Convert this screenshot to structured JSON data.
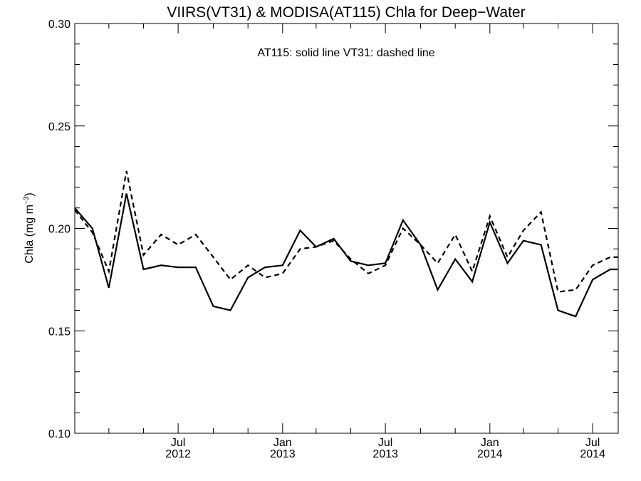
{
  "chart_data": {
    "type": "line",
    "title": "VIIRS(VT31) & MODISA(AT115)  Chla for Deep−Water",
    "annotation": "AT115: solid line   VT31: dashed line",
    "xlabel": "",
    "ylabel": {
      "text": "Chla (mg m",
      "superscript": "−3",
      "close": ")"
    },
    "ylim": [
      0.1,
      0.3
    ],
    "yticks": [
      "0.10",
      "0.15",
      "0.20",
      "0.25",
      "0.30"
    ],
    "yticks_values": [
      0.1,
      0.15,
      0.2,
      0.25,
      0.3
    ],
    "y_minor_step": 0.01,
    "x_axis_type": "date",
    "xlim": [
      "2012-01-01",
      "2014-08-15"
    ],
    "x_major_ticks": [
      {
        "date": "2012-07-01",
        "label_top": "Jul",
        "label_bottom": "2012"
      },
      {
        "date": "2013-01-01",
        "label_top": "Jan",
        "label_bottom": "2013"
      },
      {
        "date": "2013-07-01",
        "label_top": "Jul",
        "label_bottom": "2013"
      },
      {
        "date": "2014-01-01",
        "label_top": "Jan",
        "label_bottom": "2014"
      },
      {
        "date": "2014-07-01",
        "label_top": "Jul",
        "label_bottom": "2014"
      }
    ],
    "x_minor_ticks": [
      "2012-03-01",
      "2012-05-01",
      "2012-09-01",
      "2012-11-01",
      "2013-03-01",
      "2013-05-01",
      "2013-09-01",
      "2013-11-01",
      "2014-03-01",
      "2014-05-01"
    ],
    "x": [
      "2012-01-01",
      "2012-02-01",
      "2012-03-01",
      "2012-04-01",
      "2012-05-01",
      "2012-06-01",
      "2012-07-01",
      "2012-08-01",
      "2012-09-01",
      "2012-10-01",
      "2012-11-01",
      "2012-12-01",
      "2013-01-01",
      "2013-02-01",
      "2013-03-01",
      "2013-04-01",
      "2013-05-01",
      "2013-06-01",
      "2013-07-01",
      "2013-08-01",
      "2013-09-01",
      "2013-10-01",
      "2013-11-01",
      "2013-12-01",
      "2014-01-01",
      "2014-02-01",
      "2014-03-01",
      "2014-04-01",
      "2014-05-01",
      "2014-06-01",
      "2014-07-01",
      "2014-08-01",
      "2014-08-15"
    ],
    "series": [
      {
        "name": "AT115",
        "style": "solid",
        "color": "#000000",
        "values": [
          0.21,
          0.2,
          0.171,
          0.217,
          0.18,
          0.182,
          0.181,
          0.181,
          0.162,
          0.16,
          0.176,
          0.181,
          0.182,
          0.199,
          0.191,
          0.195,
          0.184,
          0.182,
          0.183,
          0.204,
          0.192,
          0.17,
          0.185,
          0.174,
          0.203,
          0.183,
          0.194,
          0.192,
          0.16,
          0.157,
          0.175,
          0.18,
          0.18
        ]
      },
      {
        "name": "VT31",
        "style": "dashed",
        "color": "#000000",
        "values": [
          0.209,
          0.198,
          0.179,
          0.228,
          0.187,
          0.197,
          0.192,
          0.197,
          0.186,
          0.175,
          0.182,
          0.176,
          0.178,
          0.19,
          0.191,
          0.194,
          0.185,
          0.178,
          0.182,
          0.2,
          0.192,
          0.183,
          0.197,
          0.179,
          0.206,
          0.186,
          0.199,
          0.208,
          0.169,
          0.17,
          0.182,
          0.186,
          0.186
        ]
      }
    ],
    "grid": false,
    "legend": "none"
  }
}
